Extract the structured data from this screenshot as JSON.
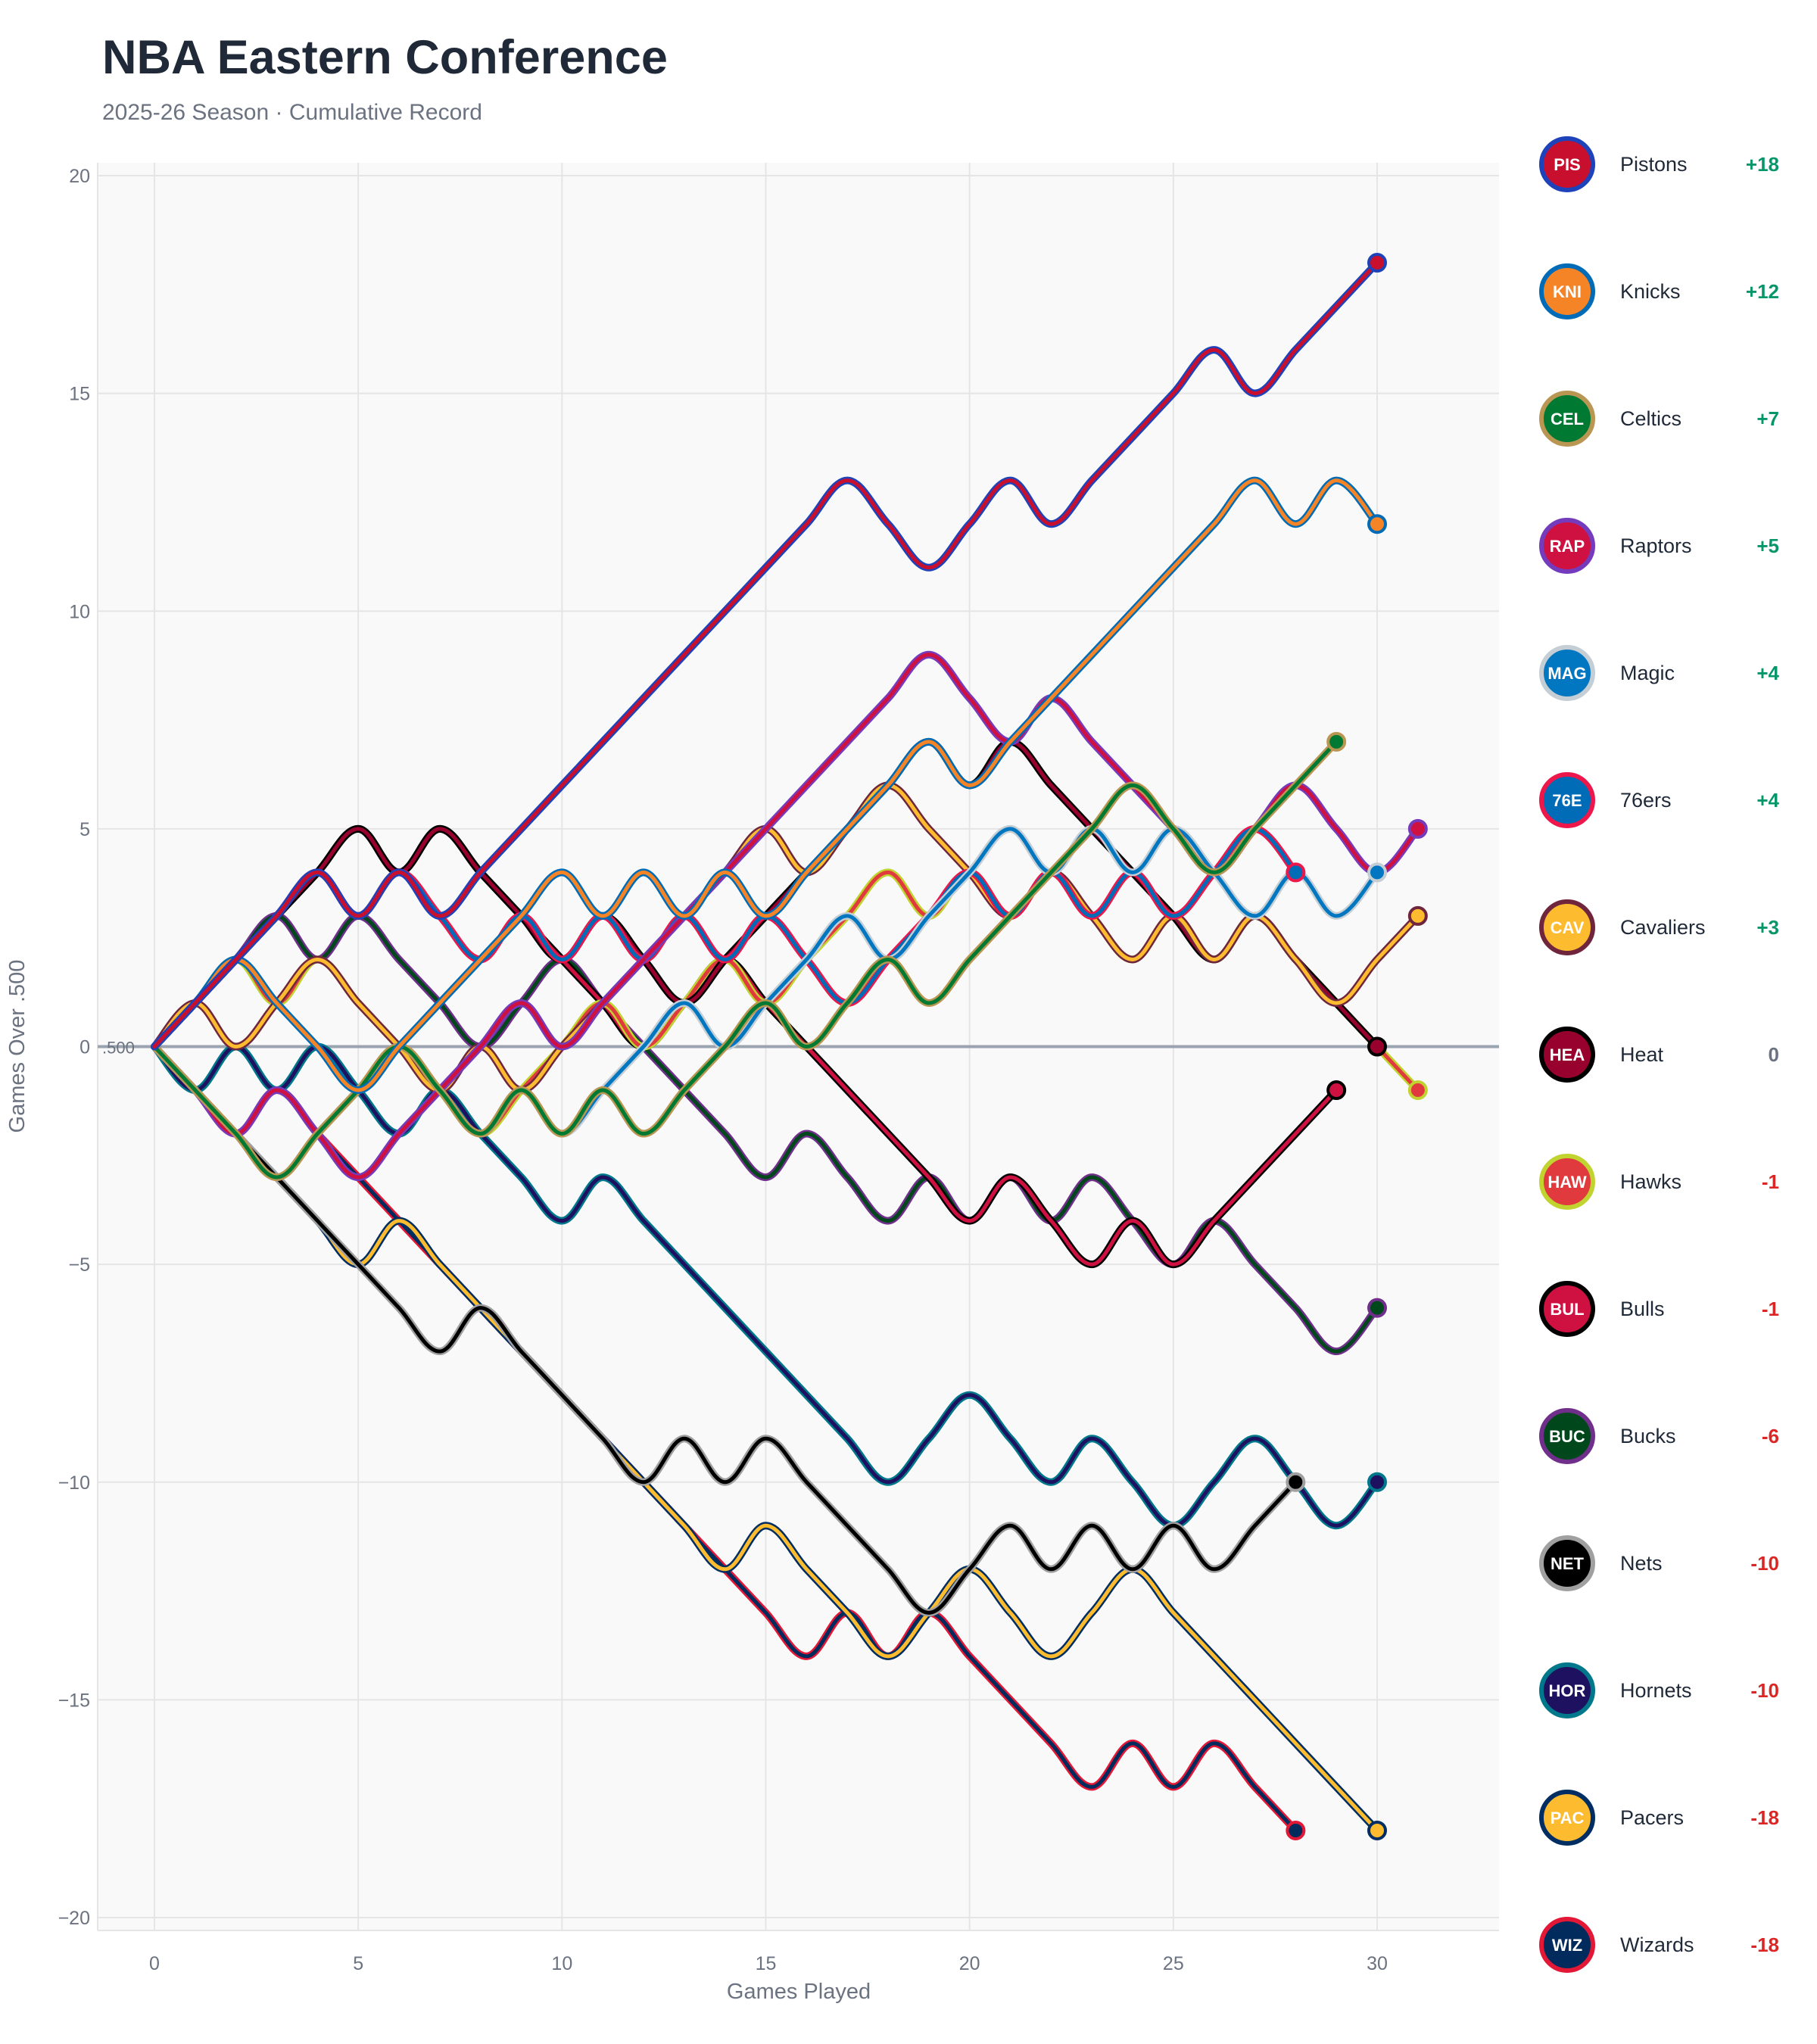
{
  "header": {
    "title": "NBA Eastern Conference",
    "subtitle": "2025-26 Season · Cumulative Record"
  },
  "chart_data": {
    "type": "line",
    "title": "NBA Eastern Conference",
    "subtitle": "2025-26 Season · Cumulative Record",
    "xlabel": "Games Played",
    "ylabel": "Games Over .500",
    "xlim": [
      -1.4,
      33
    ],
    "ylim": [
      -20.5,
      20.5
    ],
    "x_ticks": [
      0,
      5,
      10,
      15,
      20,
      25,
      30
    ],
    "y_ticks": [
      -20,
      -15,
      -10,
      -5,
      0,
      5,
      10,
      15,
      20
    ],
    "y_tick_labels": [
      "−20",
      "−15",
      "−10",
      "−5",
      "0",
      "5",
      "10",
      "15",
      "20"
    ],
    "reference_line": {
      "y": 0,
      "label": ".500"
    },
    "grid": true,
    "legend_position": "right",
    "series": [
      {
        "name": "Pistons",
        "final": "+18",
        "color": "#C8102E",
        "edge": "#1D42BA",
        "values": [
          0,
          1,
          2,
          3,
          4,
          3,
          4,
          3,
          4,
          5,
          6,
          7,
          8,
          9,
          10,
          11,
          12,
          13,
          12,
          11,
          12,
          13,
          12,
          13,
          14,
          15,
          16,
          15,
          16,
          17,
          18
        ]
      },
      {
        "name": "Knicks",
        "final": "+12",
        "color": "#F58426",
        "edge": "#006BB6",
        "values": [
          0,
          1,
          2,
          1,
          0,
          -1,
          0,
          1,
          2,
          3,
          4,
          3,
          4,
          3,
          4,
          3,
          4,
          5,
          6,
          7,
          6,
          7,
          8,
          9,
          10,
          11,
          12,
          13,
          12,
          13,
          12
        ]
      },
      {
        "name": "Celtics",
        "final": "+7",
        "color": "#007A33",
        "edge": "#BA9653",
        "values": [
          0,
          -1,
          -2,
          -3,
          -2,
          -1,
          0,
          -1,
          -2,
          -1,
          -2,
          -1,
          -2,
          -1,
          0,
          1,
          0,
          1,
          2,
          1,
          2,
          3,
          4,
          5,
          6,
          5,
          4,
          5,
          6,
          7
        ]
      },
      {
        "name": "Raptors",
        "final": "+5",
        "color": "#CE1141",
        "edge": "#753BBD",
        "values": [
          0,
          -1,
          -2,
          -1,
          -2,
          -3,
          -2,
          -1,
          0,
          1,
          0,
          1,
          2,
          3,
          4,
          5,
          6,
          7,
          8,
          9,
          8,
          7,
          8,
          7,
          6,
          5,
          4,
          5,
          6,
          5,
          4,
          5
        ]
      },
      {
        "name": "Magic",
        "final": "+4",
        "color": "#0077C0",
        "edge": "#C4CED4",
        "values": [
          0,
          -1,
          -2,
          -3,
          -2,
          -1,
          0,
          -1,
          -2,
          -1,
          -2,
          -1,
          0,
          1,
          0,
          1,
          2,
          3,
          2,
          3,
          4,
          5,
          4,
          5,
          4,
          5,
          4,
          3,
          4,
          3,
          4
        ]
      },
      {
        "name": "76ers",
        "final": "+4",
        "color": "#006BB6",
        "edge": "#ED174C",
        "values": [
          0,
          1,
          2,
          3,
          4,
          3,
          4,
          3,
          2,
          3,
          2,
          3,
          2,
          3,
          2,
          3,
          2,
          1,
          2,
          3,
          4,
          3,
          4,
          3,
          4,
          3,
          4,
          5,
          4
        ]
      },
      {
        "name": "Cavaliers",
        "final": "+3",
        "color": "#FDBB30",
        "edge": "#6F263D",
        "values": [
          0,
          1,
          0,
          1,
          2,
          1,
          0,
          -1,
          0,
          -1,
          0,
          1,
          2,
          3,
          4,
          5,
          4,
          5,
          6,
          5,
          4,
          3,
          4,
          3,
          2,
          3,
          2,
          3,
          2,
          1,
          2,
          3
        ]
      },
      {
        "name": "Heat",
        "final": "0",
        "color": "#98002E",
        "edge": "#000000",
        "values": [
          0,
          1,
          2,
          3,
          4,
          5,
          4,
          5,
          4,
          3,
          2,
          3,
          2,
          1,
          2,
          3,
          4,
          5,
          6,
          7,
          6,
          7,
          6,
          5,
          4,
          3,
          2,
          3,
          2,
          1,
          0
        ]
      },
      {
        "name": "Hawks",
        "final": "-1",
        "color": "#E03A3E",
        "edge": "#C1D32F",
        "values": [
          0,
          1,
          2,
          1,
          2,
          1,
          0,
          -1,
          -2,
          -1,
          0,
          1,
          0,
          1,
          2,
          1,
          2,
          3,
          4,
          3,
          4,
          3,
          4,
          3,
          2,
          3,
          2,
          3,
          2,
          1,
          0,
          -1
        ]
      },
      {
        "name": "Bulls",
        "final": "-1",
        "color": "#CE1141",
        "edge": "#000000",
        "values": [
          0,
          1,
          2,
          3,
          4,
          5,
          4,
          5,
          4,
          3,
          2,
          1,
          0,
          1,
          2,
          1,
          0,
          -1,
          -2,
          -3,
          -4,
          -3,
          -4,
          -5,
          -4,
          -5,
          -4,
          -3,
          -2,
          -1
        ]
      },
      {
        "name": "Bucks",
        "final": "-6",
        "color": "#00471B",
        "edge": "#702F8A",
        "values": [
          0,
          1,
          2,
          3,
          2,
          3,
          2,
          1,
          0,
          1,
          2,
          1,
          0,
          -1,
          -2,
          -3,
          -2,
          -3,
          -4,
          -3,
          -4,
          -3,
          -4,
          -3,
          -4,
          -5,
          -4,
          -5,
          -6,
          -7,
          -6
        ]
      },
      {
        "name": "Nets",
        "final": "-10",
        "color": "#000000",
        "edge": "#A0A0A0",
        "values": [
          0,
          -1,
          -2,
          -3,
          -4,
          -5,
          -6,
          -7,
          -6,
          -7,
          -8,
          -9,
          -10,
          -9,
          -10,
          -9,
          -10,
          -11,
          -12,
          -13,
          -12,
          -11,
          -12,
          -11,
          -12,
          -11,
          -12,
          -11,
          -10
        ]
      },
      {
        "name": "Hornets",
        "final": "-10",
        "color": "#1D1160",
        "edge": "#00788C",
        "values": [
          0,
          -1,
          0,
          -1,
          0,
          -1,
          -2,
          -1,
          -2,
          -3,
          -4,
          -3,
          -4,
          -5,
          -6,
          -7,
          -8,
          -9,
          -10,
          -9,
          -8,
          -9,
          -10,
          -9,
          -10,
          -11,
          -10,
          -9,
          -10,
          -11,
          -10
        ]
      },
      {
        "name": "Pacers",
        "final": "-18",
        "color": "#FDBB30",
        "edge": "#002D62",
        "values": [
          0,
          -1,
          -2,
          -3,
          -4,
          -5,
          -4,
          -5,
          -6,
          -7,
          -8,
          -9,
          -10,
          -11,
          -12,
          -11,
          -12,
          -13,
          -14,
          -13,
          -12,
          -13,
          -14,
          -13,
          -12,
          -13,
          -14,
          -15,
          -16,
          -17,
          -18
        ]
      },
      {
        "name": "Wizards",
        "final": "-18",
        "color": "#002B5C",
        "edge": "#E31837",
        "values": [
          0,
          -1,
          -2,
          -1,
          -2,
          -3,
          -4,
          -5,
          -6,
          -7,
          -8,
          -9,
          -10,
          -11,
          -12,
          -13,
          -14,
          -13,
          -14,
          -13,
          -14,
          -15,
          -16,
          -17,
          -16,
          -17,
          -16,
          -17,
          -18
        ]
      }
    ]
  },
  "legend": {
    "items": [
      {
        "name": "Pistons",
        "value": "+18",
        "sign": "pos",
        "icon": "pistons-logo-icon"
      },
      {
        "name": "Knicks",
        "value": "+12",
        "sign": "pos",
        "icon": "knicks-logo-icon"
      },
      {
        "name": "Celtics",
        "value": "+7",
        "sign": "pos",
        "icon": "celtics-logo-icon"
      },
      {
        "name": "Raptors",
        "value": "+5",
        "sign": "pos",
        "icon": "raptors-logo-icon"
      },
      {
        "name": "Magic",
        "value": "+4",
        "sign": "pos",
        "icon": "magic-logo-icon"
      },
      {
        "name": "76ers",
        "value": "+4",
        "sign": "pos",
        "icon": "76ers-logo-icon"
      },
      {
        "name": "Cavaliers",
        "value": "+3",
        "sign": "pos",
        "icon": "cavaliers-logo-icon"
      },
      {
        "name": "Heat",
        "value": "0",
        "sign": "zero",
        "icon": "heat-logo-icon"
      },
      {
        "name": "Hawks",
        "value": "-1",
        "sign": "neg",
        "icon": "hawks-logo-icon"
      },
      {
        "name": "Bulls",
        "value": "-1",
        "sign": "neg",
        "icon": "bulls-logo-icon"
      },
      {
        "name": "Bucks",
        "value": "-6",
        "sign": "neg",
        "icon": "bucks-logo-icon"
      },
      {
        "name": "Nets",
        "value": "-10",
        "sign": "neg",
        "icon": "nets-logo-icon"
      },
      {
        "name": "Hornets",
        "value": "-10",
        "sign": "neg",
        "icon": "hornets-logo-icon"
      },
      {
        "name": "Pacers",
        "value": "-18",
        "sign": "neg",
        "icon": "pacers-logo-icon"
      },
      {
        "name": "Wizards",
        "value": "-18",
        "sign": "neg",
        "icon": "wizards-logo-icon"
      }
    ]
  }
}
